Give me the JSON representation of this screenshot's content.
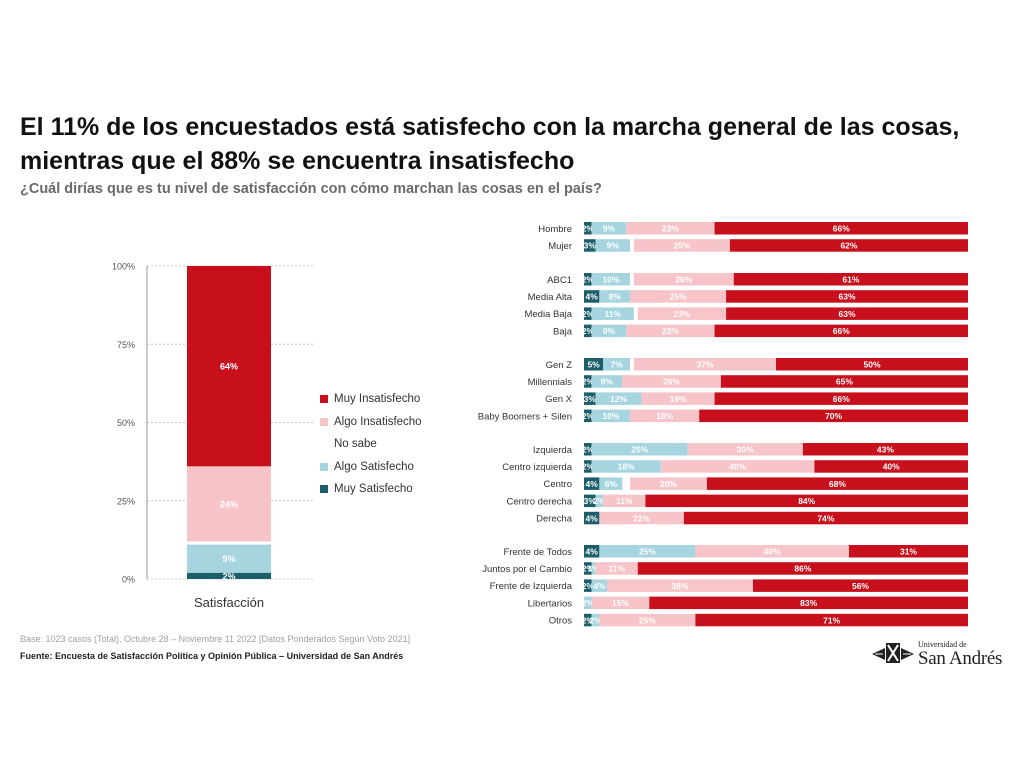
{
  "title": "El 11% de los encuestados está satisfecho con la marcha general de las cosas, mientras que el 88% se encuentra insatisfecho",
  "subtitle": "¿Cuál dirías que es tu nivel de satisfacción con cómo marchan las cosas en el país?",
  "colors": {
    "muy_satisfecho": "#1c5f6b",
    "algo_satisfecho": "#a6d5e0",
    "no_sabe": "#ffffff",
    "algo_insatisfecho": "#f7c4c9",
    "muy_insatisfecho": "#c7101b"
  },
  "legend": [
    {
      "key": "muy_insatisfecho",
      "label": "Muy Insatisfecho"
    },
    {
      "key": "algo_insatisfecho",
      "label": "Algo Insatisfecho"
    },
    {
      "key": "no_sabe",
      "label": "No sabe"
    },
    {
      "key": "algo_satisfecho",
      "label": "Algo Satisfecho"
    },
    {
      "key": "muy_satisfecho",
      "label": "Muy Satisfecho"
    }
  ],
  "chart_data": [
    {
      "type": "bar",
      "stacked": true,
      "categories": [
        "Satisfacción"
      ],
      "xlabel": "",
      "ylabel": "",
      "ylim": [
        0,
        100
      ],
      "yticks": [
        "0%",
        "25%",
        "50%",
        "75%",
        "100%"
      ],
      "grid": true,
      "legend_position": "right",
      "series": [
        {
          "name": "Muy Satisfecho",
          "key": "muy_satisfecho",
          "values": [
            2
          ],
          "label": "2%"
        },
        {
          "name": "Algo Satisfecho",
          "key": "algo_satisfecho",
          "values": [
            9
          ],
          "label": "9%"
        },
        {
          "name": "No sabe",
          "key": "no_sabe",
          "values": [
            1
          ],
          "label": ""
        },
        {
          "name": "Algo Insatisfecho",
          "key": "algo_insatisfecho",
          "values": [
            24
          ],
          "label": "24%"
        },
        {
          "name": "Muy Insatisfecho",
          "key": "muy_insatisfecho",
          "values": [
            64
          ],
          "label": "64%"
        }
      ]
    },
    {
      "type": "bar",
      "orientation": "horizontal",
      "stacked": true,
      "xlim": [
        0,
        100
      ],
      "segment_order": [
        "muy_satisfecho",
        "algo_satisfecho",
        "no_sabe",
        "algo_insatisfecho",
        "muy_insatisfecho"
      ],
      "groups": [
        {
          "rows": [
            {
              "label": "Hombre",
              "values": [
                2,
                9,
                0,
                23,
                66
              ],
              "labels": [
                "2%",
                "9%",
                "",
                "23%",
                "66%"
              ]
            },
            {
              "label": "Mujer",
              "values": [
                3,
                9,
                1,
                25,
                62
              ],
              "labels": [
                "3%",
                "9%",
                "",
                "25%",
                "62%"
              ]
            }
          ]
        },
        {
          "rows": [
            {
              "label": "ABC1",
              "values": [
                2,
                10,
                1,
                26,
                61
              ],
              "labels": [
                "2%",
                "10%",
                "",
                "26%",
                "61%"
              ]
            },
            {
              "label": "Media Alta",
              "values": [
                4,
                8,
                0,
                25,
                63
              ],
              "labels": [
                "4%",
                "8%",
                "",
                "25%",
                "63%"
              ]
            },
            {
              "label": "Media Baja",
              "values": [
                2,
                11,
                1,
                23,
                63
              ],
              "labels": [
                "2%",
                "11%",
                "",
                "23%",
                "63%"
              ]
            },
            {
              "label": "Baja",
              "values": [
                2,
                9,
                0,
                23,
                66
              ],
              "labels": [
                "2%",
                "9%",
                "",
                "23%",
                "66%"
              ]
            }
          ]
        },
        {
          "rows": [
            {
              "label": "Gen Z",
              "values": [
                5,
                7,
                1,
                37,
                50
              ],
              "labels": [
                "5%",
                "7%",
                "",
                "37%",
                "50%"
              ]
            },
            {
              "label": "Millennials",
              "values": [
                2,
                8,
                0,
                26,
                65
              ],
              "labels": [
                "2%",
                "8%",
                "",
                "26%",
                "65%"
              ]
            },
            {
              "label": "Gen X",
              "values": [
                3,
                12,
                0,
                19,
                66
              ],
              "labels": [
                "3%",
                "12%",
                "",
                "19%",
                "66%"
              ]
            },
            {
              "label": "Baby Boomers + Silen",
              "values": [
                2,
                10,
                0,
                18,
                70
              ],
              "labels": [
                "2%",
                "10%",
                "",
                "18%",
                "70%"
              ]
            }
          ]
        },
        {
          "rows": [
            {
              "label": "Izquierda",
              "values": [
                2,
                25,
                0,
                30,
                43
              ],
              "labels": [
                "2%",
                "25%",
                "",
                "30%",
                "43%"
              ]
            },
            {
              "label": "Centro izquierda",
              "values": [
                2,
                18,
                0,
                40,
                40
              ],
              "labels": [
                "2%",
                "18%",
                "",
                "40%",
                "40%"
              ]
            },
            {
              "label": "Centro",
              "values": [
                4,
                6,
                2,
                20,
                68
              ],
              "labels": [
                "4%",
                "6%",
                "",
                "20%",
                "68%"
              ]
            },
            {
              "label": "Centro derecha",
              "values": [
                3,
                2,
                0,
                11,
                84
              ],
              "labels": [
                "3%",
                "2%",
                "",
                "11%",
                "84%"
              ]
            },
            {
              "label": "Derecha",
              "values": [
                4,
                0,
                0,
                22,
                74
              ],
              "labels": [
                "4%",
                "",
                "",
                "22%",
                "74%"
              ]
            }
          ]
        },
        {
          "rows": [
            {
              "label": "Frente de Todos",
              "values": [
                4,
                25,
                0,
                40,
                31
              ],
              "labels": [
                "4%",
                "25%",
                "",
                "40%",
                "31%"
              ]
            },
            {
              "label": "Juntos por el Cambio",
              "values": [
                2,
                1,
                0,
                11,
                86
              ],
              "labels": [
                "2%",
                "1%",
                "",
                "11%",
                "86%"
              ]
            },
            {
              "label": "Frente de Izquierda",
              "values": [
                2,
                4,
                0,
                38,
                56
              ],
              "labels": [
                "2%",
                "4%",
                "",
                "38%",
                "56%"
              ]
            },
            {
              "label": "Libertarios",
              "values": [
                0,
                2,
                0,
                15,
                83
              ],
              "labels": [
                "",
                "2%",
                "",
                "15%",
                "83%"
              ]
            },
            {
              "label": "Otros",
              "values": [
                2,
                2,
                0,
                25,
                71
              ],
              "labels": [
                "2%",
                "2%",
                "",
                "25%",
                "71%"
              ]
            }
          ]
        }
      ]
    }
  ],
  "footer": {
    "note": "Base: 1023 casos (Total), Octubre 28 – Noviembre 11 2022 [Datos Ponderados Según Voto 2021]",
    "source": "Fuente: Encuesta de Satisfacción Política y Opinión Pública – Universidad de San Andrés"
  },
  "logo": {
    "small": "Universidad de",
    "big": "San Andrés"
  }
}
